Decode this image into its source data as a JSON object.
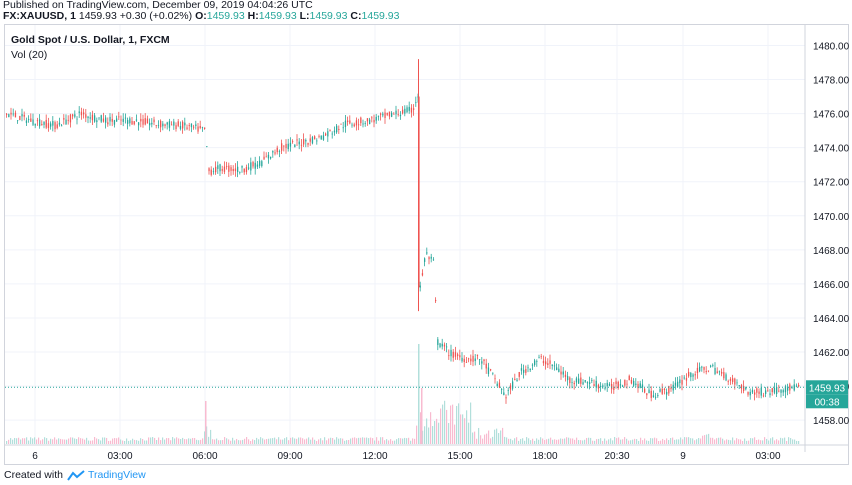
{
  "header": {
    "published": "Published on TradingView.com, December 09, 2019 04:04:26 UTC",
    "symbol": "FX:XAUUSD, 1",
    "last": "1459.93",
    "change": "+0.30 (+0.02%)",
    "o_label": "O:",
    "o": "1459.93",
    "h_label": "H:",
    "h": "1459.93",
    "l_label": "L:",
    "l": "1459.93",
    "c_label": "C:",
    "c": "1459.93"
  },
  "legend": {
    "title": "Gold Spot / U.S. Dollar, 1, FXCM",
    "volume": "Vol (20)"
  },
  "footer": {
    "created_with": "Created with",
    "brand": "TradingView"
  },
  "chart_data": {
    "type": "candlestick",
    "title": "Gold Spot / U.S. Dollar, 1, FXCM",
    "ylim": [
      1456.6,
      1481.2
    ],
    "yticks": [
      1458.0,
      1460.0,
      1462.0,
      1464.0,
      1466.0,
      1468.0,
      1470.0,
      1472.0,
      1474.0,
      1476.0,
      1478.0,
      1480.0
    ],
    "xticks": [
      "6",
      "03:00",
      "06:00",
      "09:00",
      "12:00",
      "15:00",
      "18:00",
      "20:30",
      "9",
      "03:00"
    ],
    "x_range": [
      "2019-12-06 00:00",
      "2019-12-09 04:04"
    ],
    "series": [
      {
        "name": "price",
        "points": [
          [
            "00:00",
            1476.0
          ],
          [
            "01:00",
            1475.5
          ],
          [
            "02:00",
            1476.0
          ],
          [
            "03:00",
            1475.6
          ],
          [
            "04:00",
            1475.7
          ],
          [
            "05:00",
            1475.4
          ],
          [
            "06:00",
            1475.0
          ],
          [
            "06:10",
            1472.5
          ],
          [
            "07:00",
            1472.7
          ],
          [
            "08:00",
            1473.0
          ],
          [
            "09:00",
            1474.0
          ],
          [
            "10:00",
            1474.6
          ],
          [
            "11:00",
            1475.7
          ],
          [
            "12:00",
            1475.8
          ],
          [
            "13:00",
            1476.2
          ],
          [
            "13:30",
            1477.0
          ],
          [
            "13:31",
            1465.5
          ],
          [
            "13:40",
            1468.2
          ],
          [
            "14:00",
            1467.5
          ],
          [
            "14:30",
            1462.5
          ],
          [
            "15:00",
            1461.8
          ],
          [
            "16:00",
            1461.3
          ],
          [
            "17:00",
            1460.0
          ],
          [
            "18:00",
            1461.3
          ],
          [
            "19:00",
            1460.3
          ],
          [
            "20:00",
            1460.0
          ],
          [
            "21:00",
            1460.1
          ],
          [
            "22:00",
            1459.7
          ],
          [
            "23:00",
            1459.6
          ],
          [
            "01:00",
            1460.8
          ],
          [
            "02:00",
            1460.4
          ],
          [
            "03:00",
            1459.9
          ],
          [
            "04:04",
            1459.93
          ]
        ]
      }
    ],
    "volume_series": "Vol (20)",
    "last_price_label": "1459.93",
    "countdown_label": "00:38",
    "last_price_color": "#26a69a",
    "up_color": "#26a69a",
    "down_color": "#ef5350",
    "grid": true
  }
}
